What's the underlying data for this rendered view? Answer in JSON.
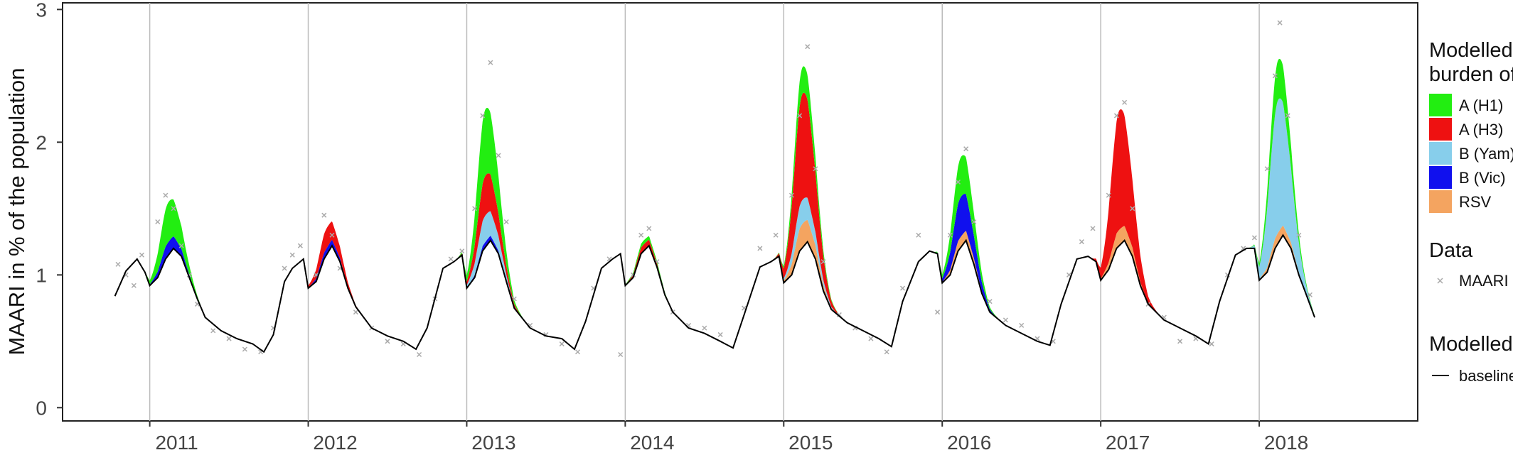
{
  "chart_data": {
    "type": "area",
    "title": "",
    "xlabel": "",
    "ylabel": "MAARI in % of the population",
    "xlim": [
      2010.45,
      2019.0
    ],
    "ylim": [
      -0.1,
      3.05
    ],
    "y_ticks": [
      0,
      1,
      2,
      3
    ],
    "x_ticks": [
      {
        "value": 2011,
        "label": "2011"
      },
      {
        "value": 2012,
        "label": "2012"
      },
      {
        "value": 2013,
        "label": "2013"
      },
      {
        "value": 2014,
        "label": "2014"
      },
      {
        "value": 2015,
        "label": "2015"
      },
      {
        "value": 2016,
        "label": "2016"
      },
      {
        "value": 2017,
        "label": "2017"
      },
      {
        "value": 2018,
        "label": "2018"
      }
    ],
    "grid": "vertical lines at each year",
    "legend_placement": "right",
    "legends": [
      {
        "title_lines": [
          "Modelled",
          "burden of"
        ],
        "entries": [
          {
            "label": "A (H1)",
            "color": "#22ee11"
          },
          {
            "label": "A (H3)",
            "color": "#ee1111"
          },
          {
            "label": "B (Yam)",
            "color": "#87ceeb"
          },
          {
            "label": "B (Vic)",
            "color": "#1010ee"
          },
          {
            "label": "RSV",
            "color": "#f4a460"
          }
        ]
      },
      {
        "title_lines": [
          "Data"
        ],
        "entries": [
          {
            "label": "MAARI",
            "marker": "x",
            "color": "#aaaaaa"
          }
        ]
      },
      {
        "title_lines": [
          "Modelled"
        ],
        "entries": [
          {
            "label": "baseline",
            "marker": "line",
            "color": "#000000"
          }
        ]
      }
    ],
    "baseline": {
      "name": "baseline",
      "points": [
        [
          2010.78,
          0.84
        ],
        [
          2010.85,
          1.03
        ],
        [
          2010.92,
          1.12
        ],
        [
          2010.97,
          1.02
        ],
        [
          2011.0,
          0.92
        ],
        [
          2011.05,
          0.98
        ],
        [
          2011.1,
          1.12
        ],
        [
          2011.15,
          1.2
        ],
        [
          2011.2,
          1.14
        ],
        [
          2011.25,
          0.98
        ],
        [
          2011.3,
          0.82
        ],
        [
          2011.35,
          0.68
        ],
        [
          2011.45,
          0.58
        ],
        [
          2011.55,
          0.52
        ],
        [
          2011.65,
          0.48
        ],
        [
          2011.72,
          0.42
        ],
        [
          2011.78,
          0.55
        ],
        [
          2011.85,
          0.95
        ],
        [
          2011.9,
          1.05
        ],
        [
          2011.97,
          1.12
        ],
        [
          2012.0,
          0.9
        ],
        [
          2012.05,
          0.95
        ],
        [
          2012.1,
          1.12
        ],
        [
          2012.15,
          1.22
        ],
        [
          2012.2,
          1.1
        ],
        [
          2012.25,
          0.9
        ],
        [
          2012.3,
          0.76
        ],
        [
          2012.4,
          0.6
        ],
        [
          2012.5,
          0.54
        ],
        [
          2012.6,
          0.5
        ],
        [
          2012.68,
          0.44
        ],
        [
          2012.75,
          0.6
        ],
        [
          2012.85,
          1.05
        ],
        [
          2012.92,
          1.1
        ],
        [
          2012.97,
          1.15
        ],
        [
          2013.0,
          0.9
        ],
        [
          2013.05,
          0.98
        ],
        [
          2013.1,
          1.18
        ],
        [
          2013.15,
          1.26
        ],
        [
          2013.2,
          1.16
        ],
        [
          2013.25,
          0.95
        ],
        [
          2013.3,
          0.75
        ],
        [
          2013.4,
          0.6
        ],
        [
          2013.5,
          0.54
        ],
        [
          2013.6,
          0.52
        ],
        [
          2013.68,
          0.44
        ],
        [
          2013.75,
          0.65
        ],
        [
          2013.85,
          1.05
        ],
        [
          2013.92,
          1.12
        ],
        [
          2013.97,
          1.16
        ],
        [
          2014.0,
          0.92
        ],
        [
          2014.05,
          0.98
        ],
        [
          2014.1,
          1.16
        ],
        [
          2014.15,
          1.22
        ],
        [
          2014.2,
          1.06
        ],
        [
          2014.25,
          0.85
        ],
        [
          2014.3,
          0.72
        ],
        [
          2014.4,
          0.6
        ],
        [
          2014.5,
          0.56
        ],
        [
          2014.6,
          0.5
        ],
        [
          2014.68,
          0.45
        ],
        [
          2014.75,
          0.7
        ],
        [
          2014.85,
          1.06
        ],
        [
          2014.92,
          1.1
        ],
        [
          2014.97,
          1.14
        ],
        [
          2015.0,
          0.94
        ],
        [
          2015.05,
          1.0
        ],
        [
          2015.1,
          1.18
        ],
        [
          2015.15,
          1.25
        ],
        [
          2015.2,
          1.12
        ],
        [
          2015.25,
          0.88
        ],
        [
          2015.3,
          0.74
        ],
        [
          2015.4,
          0.64
        ],
        [
          2015.5,
          0.58
        ],
        [
          2015.6,
          0.52
        ],
        [
          2015.68,
          0.46
        ],
        [
          2015.75,
          0.8
        ],
        [
          2015.85,
          1.1
        ],
        [
          2015.92,
          1.18
        ],
        [
          2015.97,
          1.16
        ],
        [
          2016.0,
          0.94
        ],
        [
          2016.05,
          1.0
        ],
        [
          2016.1,
          1.18
        ],
        [
          2016.15,
          1.26
        ],
        [
          2016.2,
          1.08
        ],
        [
          2016.25,
          0.86
        ],
        [
          2016.3,
          0.72
        ],
        [
          2016.4,
          0.62
        ],
        [
          2016.5,
          0.56
        ],
        [
          2016.6,
          0.5
        ],
        [
          2016.68,
          0.47
        ],
        [
          2016.75,
          0.78
        ],
        [
          2016.85,
          1.12
        ],
        [
          2016.92,
          1.14
        ],
        [
          2016.97,
          1.1
        ],
        [
          2017.0,
          0.96
        ],
        [
          2017.05,
          1.04
        ],
        [
          2017.1,
          1.2
        ],
        [
          2017.15,
          1.26
        ],
        [
          2017.2,
          1.14
        ],
        [
          2017.25,
          0.92
        ],
        [
          2017.3,
          0.78
        ],
        [
          2017.4,
          0.66
        ],
        [
          2017.5,
          0.6
        ],
        [
          2017.6,
          0.54
        ],
        [
          2017.68,
          0.48
        ],
        [
          2017.75,
          0.8
        ],
        [
          2017.85,
          1.15
        ],
        [
          2017.92,
          1.2
        ],
        [
          2017.97,
          1.2
        ],
        [
          2018.0,
          0.96
        ],
        [
          2018.05,
          1.02
        ],
        [
          2018.1,
          1.2
        ],
        [
          2018.15,
          1.3
        ],
        [
          2018.2,
          1.2
        ],
        [
          2018.25,
          1.0
        ],
        [
          2018.3,
          0.84
        ],
        [
          2018.35,
          0.68
        ]
      ]
    },
    "series": [
      {
        "name": "RSV",
        "color": "#f4a460",
        "peaks": [
          [
            2015.0,
            0.18
          ],
          [
            2016.0,
            0.08
          ],
          [
            2017.0,
            0.12
          ],
          [
            2018.0,
            0.08
          ]
        ]
      },
      {
        "name": "B (Vic)",
        "color": "#1010ee",
        "peaks": [
          [
            2011.0,
            0.1
          ],
          [
            2012.0,
            0.05
          ],
          [
            2013.0,
            0.04
          ],
          [
            2016.0,
            0.3
          ]
        ]
      },
      {
        "name": "B (Yam)",
        "color": "#87ceeb",
        "peaks": [
          [
            2013.0,
            0.2
          ],
          [
            2015.0,
            0.18
          ],
          [
            2018.0,
            1.0
          ]
        ]
      },
      {
        "name": "A (H3)",
        "color": "#ee1111",
        "peaks": [
          [
            2012.0,
            0.15
          ],
          [
            2013.0,
            0.3
          ],
          [
            2014.0,
            0.05
          ],
          [
            2015.0,
            0.8
          ],
          [
            2017.0,
            0.9
          ]
        ]
      },
      {
        "name": "A (H1)",
        "color": "#22ee11",
        "peaks": [
          [
            2011.0,
            0.3
          ],
          [
            2013.0,
            0.5
          ],
          [
            2014.0,
            0.03
          ],
          [
            2015.0,
            0.2
          ],
          [
            2016.0,
            0.3
          ],
          [
            2018.0,
            0.3
          ]
        ]
      }
    ],
    "maari_points": [
      [
        2010.8,
        1.08
      ],
      [
        2010.85,
        1.0
      ],
      [
        2010.9,
        0.92
      ],
      [
        2010.95,
        1.15
      ],
      [
        2011.05,
        1.4
      ],
      [
        2011.1,
        1.6
      ],
      [
        2011.15,
        1.5
      ],
      [
        2011.2,
        1.22
      ],
      [
        2011.25,
        1.0
      ],
      [
        2011.3,
        0.78
      ],
      [
        2011.4,
        0.58
      ],
      [
        2011.5,
        0.52
      ],
      [
        2011.6,
        0.44
      ],
      [
        2011.7,
        0.42
      ],
      [
        2011.78,
        0.6
      ],
      [
        2011.85,
        1.05
      ],
      [
        2011.9,
        1.15
      ],
      [
        2011.95,
        1.22
      ],
      [
        2012.05,
        1.0
      ],
      [
        2012.1,
        1.45
      ],
      [
        2012.15,
        1.3
      ],
      [
        2012.2,
        1.05
      ],
      [
        2012.3,
        0.72
      ],
      [
        2012.4,
        0.6
      ],
      [
        2012.5,
        0.5
      ],
      [
        2012.6,
        0.48
      ],
      [
        2012.7,
        0.4
      ],
      [
        2012.8,
        0.82
      ],
      [
        2012.9,
        1.12
      ],
      [
        2012.97,
        1.18
      ],
      [
        2013.05,
        1.5
      ],
      [
        2013.1,
        2.2
      ],
      [
        2013.15,
        2.6
      ],
      [
        2013.2,
        1.9
      ],
      [
        2013.25,
        1.4
      ],
      [
        2013.3,
        0.82
      ],
      [
        2013.4,
        0.62
      ],
      [
        2013.5,
        0.55
      ],
      [
        2013.6,
        0.48
      ],
      [
        2013.7,
        0.42
      ],
      [
        2013.8,
        0.9
      ],
      [
        2013.9,
        1.12
      ],
      [
        2013.97,
        0.4
      ],
      [
        2014.05,
        1.0
      ],
      [
        2014.1,
        1.3
      ],
      [
        2014.15,
        1.35
      ],
      [
        2014.2,
        1.1
      ],
      [
        2014.3,
        0.72
      ],
      [
        2014.4,
        0.62
      ],
      [
        2014.5,
        0.6
      ],
      [
        2014.6,
        0.55
      ],
      [
        2014.75,
        0.75
      ],
      [
        2014.85,
        1.2
      ],
      [
        2014.95,
        1.3
      ],
      [
        2015.05,
        1.6
      ],
      [
        2015.1,
        2.2
      ],
      [
        2015.15,
        2.72
      ],
      [
        2015.2,
        1.8
      ],
      [
        2015.25,
        1.1
      ],
      [
        2015.35,
        0.7
      ],
      [
        2015.45,
        0.6
      ],
      [
        2015.55,
        0.52
      ],
      [
        2015.65,
        0.42
      ],
      [
        2015.75,
        0.9
      ],
      [
        2015.85,
        1.3
      ],
      [
        2015.97,
        0.72
      ],
      [
        2016.05,
        1.3
      ],
      [
        2016.1,
        1.7
      ],
      [
        2016.15,
        1.95
      ],
      [
        2016.2,
        1.4
      ],
      [
        2016.3,
        0.8
      ],
      [
        2016.4,
        0.66
      ],
      [
        2016.5,
        0.62
      ],
      [
        2016.6,
        0.52
      ],
      [
        2016.7,
        0.5
      ],
      [
        2016.8,
        1.0
      ],
      [
        2016.88,
        1.25
      ],
      [
        2016.95,
        1.35
      ],
      [
        2017.05,
        1.6
      ],
      [
        2017.1,
        2.2
      ],
      [
        2017.15,
        2.3
      ],
      [
        2017.2,
        1.5
      ],
      [
        2017.3,
        0.78
      ],
      [
        2017.4,
        0.68
      ],
      [
        2017.5,
        0.5
      ],
      [
        2017.6,
        0.52
      ],
      [
        2017.7,
        0.48
      ],
      [
        2017.8,
        1.0
      ],
      [
        2017.9,
        1.2
      ],
      [
        2017.97,
        1.28
      ],
      [
        2018.05,
        1.8
      ],
      [
        2018.1,
        2.5
      ],
      [
        2018.13,
        2.9
      ],
      [
        2018.18,
        2.2
      ],
      [
        2018.25,
        1.3
      ],
      [
        2018.32,
        0.85
      ]
    ]
  }
}
